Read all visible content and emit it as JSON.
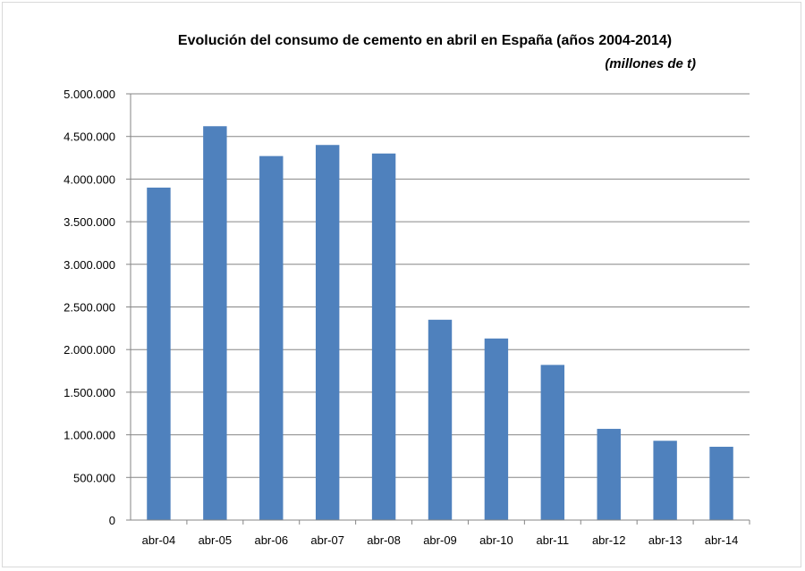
{
  "chart_data": {
    "type": "bar",
    "title": "Evolución del consumo de cemento en abril en España (años 2004-2014)",
    "subtitle": "(millones de t)",
    "xlabel": "",
    "ylabel": "",
    "categories": [
      "abr-04",
      "abr-05",
      "abr-06",
      "abr-07",
      "abr-08",
      "abr-09",
      "abr-10",
      "abr-11",
      "abr-12",
      "abr-13",
      "abr-14"
    ],
    "values": [
      3900000,
      4620000,
      4270000,
      4400000,
      4300000,
      2350000,
      2130000,
      1820000,
      1070000,
      930000,
      860000
    ],
    "ylim": [
      0,
      5000000
    ],
    "yticks": [
      0,
      500000,
      1000000,
      1500000,
      2000000,
      2500000,
      3000000,
      3500000,
      4000000,
      4500000,
      5000000
    ],
    "ytick_labels": [
      "0",
      "500.000",
      "1.000.000",
      "1.500.000",
      "2.000.000",
      "2.500.000",
      "3.000.000",
      "3.500.000",
      "4.000.000",
      "4.500.000",
      "5.000.000"
    ],
    "grid": true,
    "legend": "none",
    "bar_color": "#4f81bd",
    "grid_color": "#868686"
  }
}
